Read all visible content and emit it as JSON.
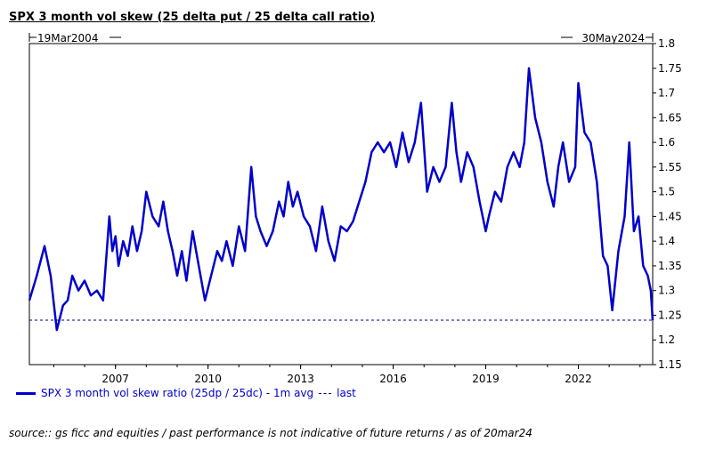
{
  "title": "SPX 3 month vol skew (25 delta put / 25 delta call ratio)",
  "source": "source:: gs ficc and equities / past performance is not indicative of future returns / as of 20mar24",
  "colors": {
    "series": "#0000cc",
    "last": "#000080"
  },
  "chart_data": {
    "type": "line",
    "title": "SPX 3 month vol skew (25 delta put / 25 delta call ratio)",
    "start_label": "19Mar2004",
    "end_label": "30May2024",
    "x_start": 2004.21,
    "x_end": 2024.41,
    "x_ticks": [
      2007,
      2010,
      2013,
      2016,
      2019,
      2022
    ],
    "x_tick_labels": [
      "2007",
      "2010",
      "2013",
      "2016",
      "2019",
      "2022"
    ],
    "ylim": [
      1.15,
      1.8
    ],
    "y_ticks": [
      1.15,
      1.2,
      1.25,
      1.3,
      1.35,
      1.4,
      1.45,
      1.5,
      1.55,
      1.6,
      1.65,
      1.7,
      1.75,
      1.8
    ],
    "y_tick_labels": [
      "1.15",
      "1.2",
      "1.25",
      "1.3",
      "1.35",
      "1.4",
      "1.45",
      "1.5",
      "1.55",
      "1.6",
      "1.65",
      "1.7",
      "1.75",
      "1.8"
    ],
    "y_axis_side": "right",
    "grid": false,
    "legend_position": "bottom-left",
    "series": [
      {
        "name": "SPX 3 month vol skew ratio (25dp / 25dc) - 1m avg",
        "x": [
          2004.21,
          2004.45,
          2004.7,
          2004.9,
          2005.1,
          2005.3,
          2005.45,
          2005.6,
          2005.8,
          2006.0,
          2006.2,
          2006.4,
          2006.6,
          2006.8,
          2006.9,
          2007.0,
          2007.1,
          2007.25,
          2007.4,
          2007.55,
          2007.7,
          2007.85,
          2008.0,
          2008.2,
          2008.4,
          2008.55,
          2008.7,
          2008.85,
          2009.0,
          2009.15,
          2009.3,
          2009.5,
          2009.7,
          2009.9,
          2010.1,
          2010.3,
          2010.45,
          2010.6,
          2010.8,
          2011.0,
          2011.2,
          2011.4,
          2011.55,
          2011.7,
          2011.9,
          2012.1,
          2012.3,
          2012.45,
          2012.6,
          2012.75,
          2012.9,
          2013.1,
          2013.3,
          2013.5,
          2013.7,
          2013.9,
          2014.1,
          2014.3,
          2014.5,
          2014.7,
          2014.9,
          2015.1,
          2015.3,
          2015.5,
          2015.7,
          2015.9,
          2016.1,
          2016.3,
          2016.5,
          2016.7,
          2016.9,
          2017.1,
          2017.3,
          2017.5,
          2017.7,
          2017.9,
          2018.05,
          2018.2,
          2018.4,
          2018.6,
          2018.8,
          2019.0,
          2019.1,
          2019.3,
          2019.5,
          2019.7,
          2019.9,
          2020.1,
          2020.25,
          2020.4,
          2020.6,
          2020.8,
          2021.0,
          2021.2,
          2021.35,
          2021.5,
          2021.7,
          2021.9,
          2022.0,
          2022.2,
          2022.4,
          2022.6,
          2022.8,
          2022.95,
          2023.1,
          2023.3,
          2023.5,
          2023.65,
          2023.8,
          2023.95,
          2024.1,
          2024.25,
          2024.35,
          2024.41
        ],
        "y": [
          1.28,
          1.33,
          1.39,
          1.33,
          1.22,
          1.27,
          1.28,
          1.33,
          1.3,
          1.32,
          1.29,
          1.3,
          1.28,
          1.45,
          1.38,
          1.41,
          1.35,
          1.4,
          1.37,
          1.43,
          1.38,
          1.42,
          1.5,
          1.45,
          1.43,
          1.48,
          1.42,
          1.38,
          1.33,
          1.38,
          1.32,
          1.42,
          1.35,
          1.28,
          1.33,
          1.38,
          1.36,
          1.4,
          1.35,
          1.43,
          1.38,
          1.55,
          1.45,
          1.42,
          1.39,
          1.42,
          1.48,
          1.45,
          1.52,
          1.47,
          1.5,
          1.45,
          1.43,
          1.38,
          1.47,
          1.4,
          1.36,
          1.43,
          1.42,
          1.44,
          1.48,
          1.52,
          1.58,
          1.6,
          1.58,
          1.6,
          1.55,
          1.62,
          1.56,
          1.6,
          1.68,
          1.5,
          1.55,
          1.52,
          1.55,
          1.68,
          1.58,
          1.52,
          1.58,
          1.55,
          1.48,
          1.42,
          1.45,
          1.5,
          1.48,
          1.55,
          1.58,
          1.55,
          1.6,
          1.75,
          1.65,
          1.6,
          1.52,
          1.47,
          1.55,
          1.6,
          1.52,
          1.55,
          1.72,
          1.62,
          1.6,
          1.52,
          1.37,
          1.35,
          1.26,
          1.38,
          1.45,
          1.6,
          1.42,
          1.45,
          1.35,
          1.33,
          1.3,
          1.24
        ]
      }
    ],
    "last": {
      "name": "last",
      "value": 1.24
    }
  }
}
